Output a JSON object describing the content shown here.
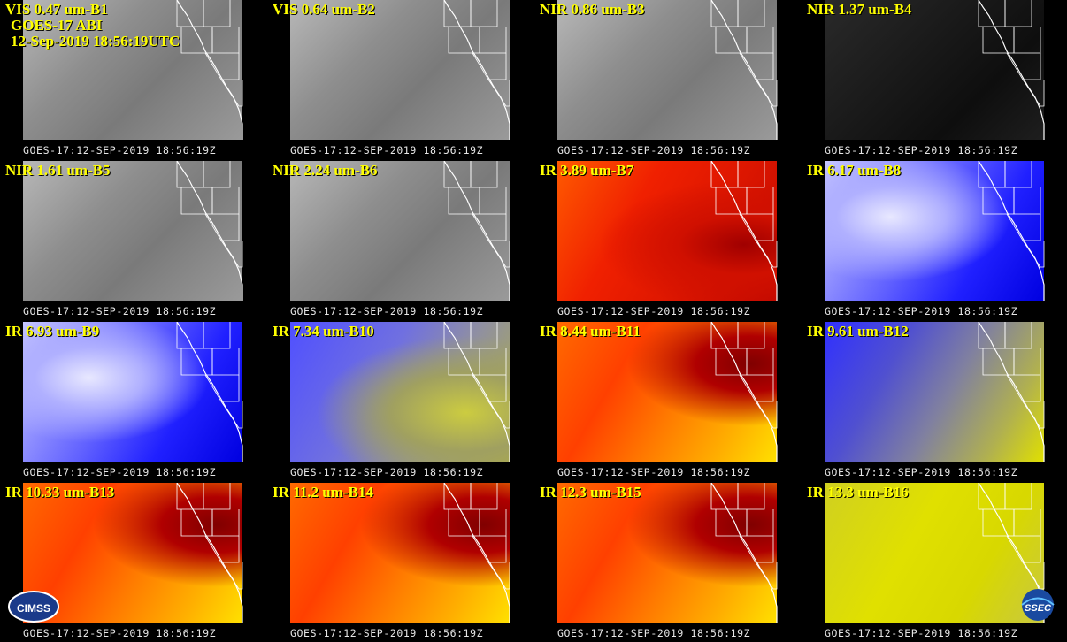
{
  "header": {
    "satellite": "GOES-17 ABI",
    "datetime": "12-Sep-2019 18:56:19UTC"
  },
  "footer_text": "GOES-17:12-SEP-2019 18:56:19Z",
  "logos": {
    "left": "CIMSS",
    "right": "SSEC"
  },
  "panels": [
    {
      "label": "VIS 0.47 um-B1",
      "palette": "gray"
    },
    {
      "label": "VIS 0.64 um-B2",
      "palette": "gray"
    },
    {
      "label": "NIR 0.86 um-B3",
      "palette": "gray"
    },
    {
      "label": "NIR 1.37 um-B4",
      "palette": "dark"
    },
    {
      "label": "NIR 1.61 um-B5",
      "palette": "gray"
    },
    {
      "label": "NIR 2.24 um-B6",
      "palette": "gray"
    },
    {
      "label": "IR 3.89 um-B7",
      "palette": "hot"
    },
    {
      "label": "IR 6.17 um-B8",
      "palette": "wv"
    },
    {
      "label": "IR 6.93 um-B9",
      "palette": "wv"
    },
    {
      "label": "IR 7.34 um-B10",
      "palette": "wv2"
    },
    {
      "label": "IR 8.44 um-B11",
      "palette": "ir"
    },
    {
      "label": "IR 9.61 um-B12",
      "palette": "oz"
    },
    {
      "label": "IR 10.33 um-B13",
      "palette": "ir"
    },
    {
      "label": "IR 11.2 um-B14",
      "palette": "ir"
    },
    {
      "label": "IR 12.3 um-B15",
      "palette": "ir"
    },
    {
      "label": "IR 13.3 um-B16",
      "palette": "co2"
    }
  ],
  "colors": {
    "label": "#ffff00",
    "footer": "#e6e6e6",
    "coast": "#ffffff"
  }
}
